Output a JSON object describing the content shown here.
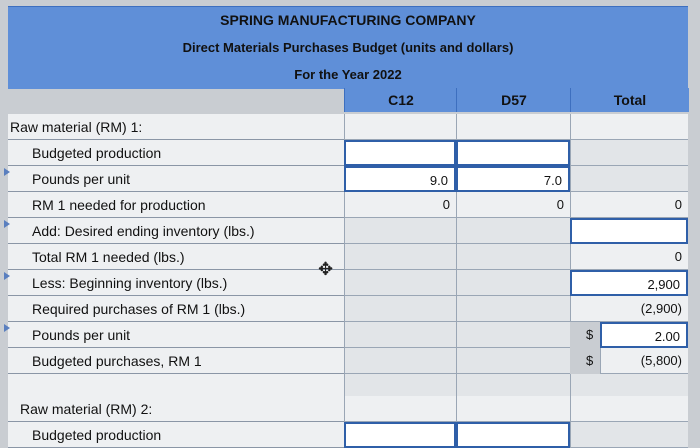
{
  "header": {
    "company": "SPRING MANUFACTURING COMPANY",
    "title": "Direct Materials Purchases Budget (units and dollars)",
    "period": "For the Year 2022"
  },
  "columns": [
    "C12",
    "D57",
    "Total"
  ],
  "section1": {
    "title": "Raw material (RM) 1:",
    "rows": [
      {
        "label": "Budgeted production",
        "c12": "",
        "d57": "",
        "total": ""
      },
      {
        "label": "Pounds per unit",
        "c12": "9.0",
        "d57": "7.0",
        "total": ""
      },
      {
        "label": "RM 1 needed for production",
        "c12": "0",
        "d57": "0",
        "total": "0"
      },
      {
        "label": "Add: Desired ending inventory (lbs.)",
        "c12": "",
        "d57": "",
        "total": ""
      },
      {
        "label": "Total RM 1 needed (lbs.)",
        "c12": "",
        "d57": "",
        "total": "0"
      },
      {
        "label": "Less: Beginning inventory (lbs.)",
        "c12": "",
        "d57": "",
        "total": "2,900"
      },
      {
        "label": "Required purchases of RM 1 (lbs.)",
        "c12": "",
        "d57": "",
        "total": "(2,900)"
      },
      {
        "label": "Pounds per unit",
        "c12": "",
        "d57": "$",
        "total": "2.00"
      },
      {
        "label": "Budgeted purchases, RM 1",
        "c12": "",
        "d57": "$",
        "total": "(5,800)"
      }
    ]
  },
  "section2": {
    "title": "Raw material (RM) 2:",
    "rows": [
      {
        "label": "Budgeted production"
      }
    ]
  }
}
